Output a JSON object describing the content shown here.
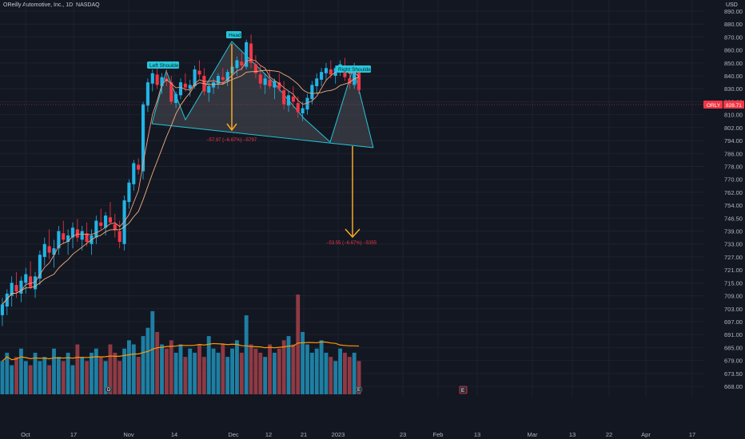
{
  "header": {
    "title": "OReilly Automotive, Inc., 1D, NASDAQ",
    "currency": "USD"
  },
  "colors": {
    "background": "#131722",
    "up": "#22b4e6",
    "down": "#f23645",
    "volume_up": "#1e7fa3",
    "volume_down": "#8e3a44",
    "ma_fast": "#f59a7a",
    "ma_slow": "#f5b07a",
    "volume_ma": "#ff9800",
    "pattern_fill": "#3d4048",
    "pattern_line": "#26c6da",
    "projection": "#f9a825",
    "price_line": "#f23645"
  },
  "price_tag": {
    "symbol": "ORLY",
    "value": "828.71"
  },
  "chart_data": {
    "type": "candlestick",
    "y_ticks": [
      "890.00",
      "880.00",
      "870.00",
      "860.00",
      "850.00",
      "840.00",
      "830.00",
      "820.00",
      "810.00",
      "802.00",
      "794.00",
      "786.00",
      "778.00",
      "770.00",
      "762.00",
      "754.00",
      "746.50",
      "739.00",
      "733.00",
      "727.00",
      "721.00",
      "715.00",
      "709.00",
      "703.00",
      "697.00",
      "691.00",
      "685.00",
      "679.00",
      "673.50",
      "668.00"
    ],
    "x_ticks": [
      "Oct",
      "17",
      "Nov",
      "14",
      "Dec",
      "12",
      "21",
      "2023",
      "23",
      "Feb",
      "13",
      "Mar",
      "13",
      "22",
      "Apr",
      "17"
    ],
    "ylim": [
      668,
      893
    ],
    "last_price": 828.71,
    "ohlc": [
      [
        700,
        708,
        695,
        705
      ],
      [
        704,
        712,
        700,
        710
      ],
      [
        709,
        718,
        704,
        715
      ],
      [
        714,
        720,
        708,
        711
      ],
      [
        710,
        718,
        706,
        716
      ],
      [
        715,
        722,
        710,
        719
      ],
      [
        718,
        725,
        712,
        713
      ],
      [
        712,
        720,
        708,
        718
      ],
      [
        717,
        730,
        714,
        728
      ],
      [
        727,
        736,
        723,
        733
      ],
      [
        732,
        740,
        726,
        729
      ],
      [
        728,
        735,
        722,
        731
      ],
      [
        731,
        742,
        728,
        739
      ],
      [
        738,
        745,
        733,
        735
      ],
      [
        734,
        740,
        728,
        737
      ],
      [
        736,
        744,
        731,
        741
      ],
      [
        740,
        746,
        734,
        736
      ],
      [
        735,
        742,
        730,
        739
      ],
      [
        738,
        744,
        732,
        734
      ],
      [
        733,
        740,
        728,
        737
      ],
      [
        736,
        748,
        733,
        745
      ],
      [
        744,
        752,
        740,
        742
      ],
      [
        741,
        750,
        737,
        748
      ],
      [
        747,
        756,
        743,
        744
      ],
      [
        743,
        749,
        736,
        740
      ],
      [
        739,
        745,
        731,
        734
      ],
      [
        733,
        760,
        730,
        757
      ],
      [
        756,
        770,
        752,
        768
      ],
      [
        767,
        782,
        763,
        780
      ],
      [
        779,
        783,
        773,
        776
      ],
      [
        775,
        820,
        770,
        818
      ],
      [
        817,
        838,
        812,
        835
      ],
      [
        834,
        845,
        828,
        842
      ],
      [
        841,
        848,
        830,
        833
      ],
      [
        832,
        842,
        826,
        839
      ],
      [
        838,
        845,
        832,
        836
      ],
      [
        835,
        840,
        818,
        820
      ],
      [
        819,
        828,
        815,
        826
      ],
      [
        825,
        838,
        822,
        835
      ],
      [
        834,
        842,
        828,
        831
      ],
      [
        830,
        837,
        824,
        833
      ],
      [
        832,
        848,
        830,
        845
      ],
      [
        844,
        852,
        838,
        841
      ],
      [
        840,
        846,
        825,
        828
      ],
      [
        827,
        835,
        820,
        832
      ],
      [
        831,
        838,
        826,
        835
      ],
      [
        834,
        842,
        830,
        840
      ],
      [
        839,
        846,
        833,
        837
      ],
      [
        836,
        845,
        832,
        843
      ],
      [
        842,
        850,
        838,
        847
      ],
      [
        846,
        855,
        840,
        852
      ],
      [
        851,
        858,
        844,
        848
      ],
      [
        847,
        868,
        845,
        866
      ],
      [
        865,
        872,
        846,
        850
      ],
      [
        849,
        856,
        838,
        842
      ],
      [
        841,
        848,
        830,
        834
      ],
      [
        833,
        842,
        826,
        838
      ],
      [
        837,
        845,
        830,
        832
      ],
      [
        831,
        838,
        822,
        836
      ],
      [
        835,
        842,
        828,
        830
      ],
      [
        829,
        836,
        814,
        818
      ],
      [
        817,
        828,
        812,
        825
      ],
      [
        824,
        832,
        815,
        820
      ],
      [
        819,
        824,
        808,
        812
      ],
      [
        811,
        820,
        806,
        815
      ],
      [
        814,
        826,
        810,
        823
      ],
      [
        822,
        836,
        818,
        833
      ],
      [
        832,
        842,
        826,
        838
      ],
      [
        837,
        846,
        832,
        843
      ],
      [
        842,
        850,
        836,
        846
      ],
      [
        845,
        852,
        838,
        841
      ],
      [
        840,
        848,
        834,
        846
      ],
      [
        845,
        852,
        840,
        849
      ],
      [
        848,
        854,
        836,
        839
      ],
      [
        838,
        846,
        830,
        834
      ],
      [
        833,
        850,
        830,
        846
      ],
      [
        845,
        848,
        826,
        829
      ]
    ],
    "volume": [
      8,
      10,
      7,
      9,
      11,
      8,
      7,
      10,
      8,
      9,
      7,
      11,
      9,
      8,
      10,
      7,
      12,
      9,
      8,
      10,
      11,
      9,
      8,
      12,
      10,
      8,
      11,
      13,
      12,
      9,
      14,
      16,
      20,
      15,
      12,
      11,
      13,
      10,
      12,
      9,
      11,
      10,
      12,
      9,
      14,
      11,
      10,
      12,
      9,
      11,
      13,
      10,
      19,
      12,
      11,
      10,
      9,
      12,
      10,
      11,
      13,
      14,
      12,
      24,
      15,
      12,
      10,
      11,
      13,
      10,
      9,
      8,
      11,
      10,
      9,
      10,
      8
    ]
  }
}
